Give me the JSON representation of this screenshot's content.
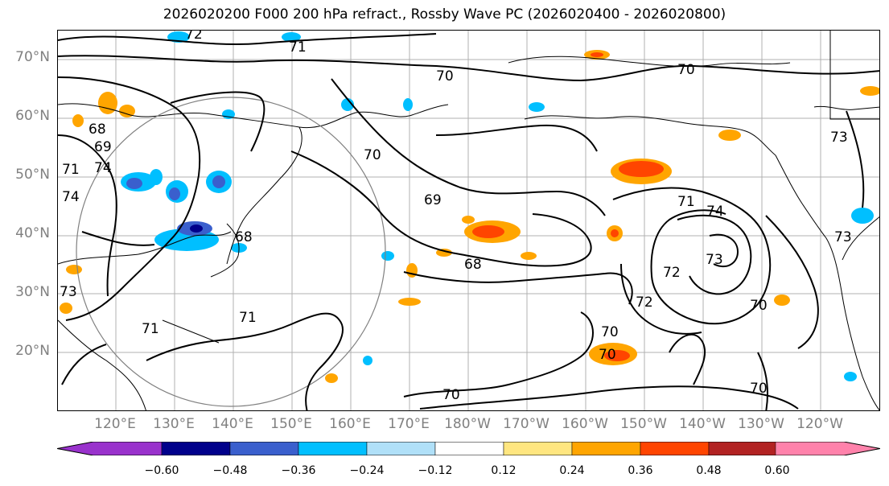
{
  "title": "2026020200 F000 200 hPa refract., Rossby Wave PC (2026020400 - 2026020800)",
  "map": {
    "lat_labels": [
      "70°N",
      "60°N",
      "50°N",
      "40°N",
      "30°N",
      "20°N"
    ],
    "lon_labels": [
      "120°E",
      "130°E",
      "140°E",
      "150°E",
      "160°E",
      "170°E",
      "180°W",
      "170°W",
      "160°W",
      "150°W",
      "140°W",
      "130°W",
      "120°W"
    ],
    "contour_labels": [
      "72",
      "71",
      "70",
      "70",
      "68",
      "69",
      "70",
      "71",
      "74",
      "74",
      "73",
      "68",
      "69",
      "68",
      "71",
      "74",
      "73",
      "72",
      "72",
      "70",
      "70",
      "73",
      "73",
      "71",
      "71",
      "70",
      "70",
      "70"
    ]
  },
  "colorbar": {
    "colors": [
      "#9932cc",
      "#00008b",
      "#3a5fcd",
      "#00bfff",
      "#b0e0f8",
      "#ffffff",
      "#ffe680",
      "#ffa500",
      "#ff4500",
      "#b22222",
      "#ff82ab",
      "#ff82ab"
    ],
    "tick_labels": [
      "−0.60",
      "−0.48",
      "−0.36",
      "−0.24",
      "−0.12",
      "0.12",
      "0.24",
      "0.36",
      "0.48",
      "0.60"
    ]
  }
}
